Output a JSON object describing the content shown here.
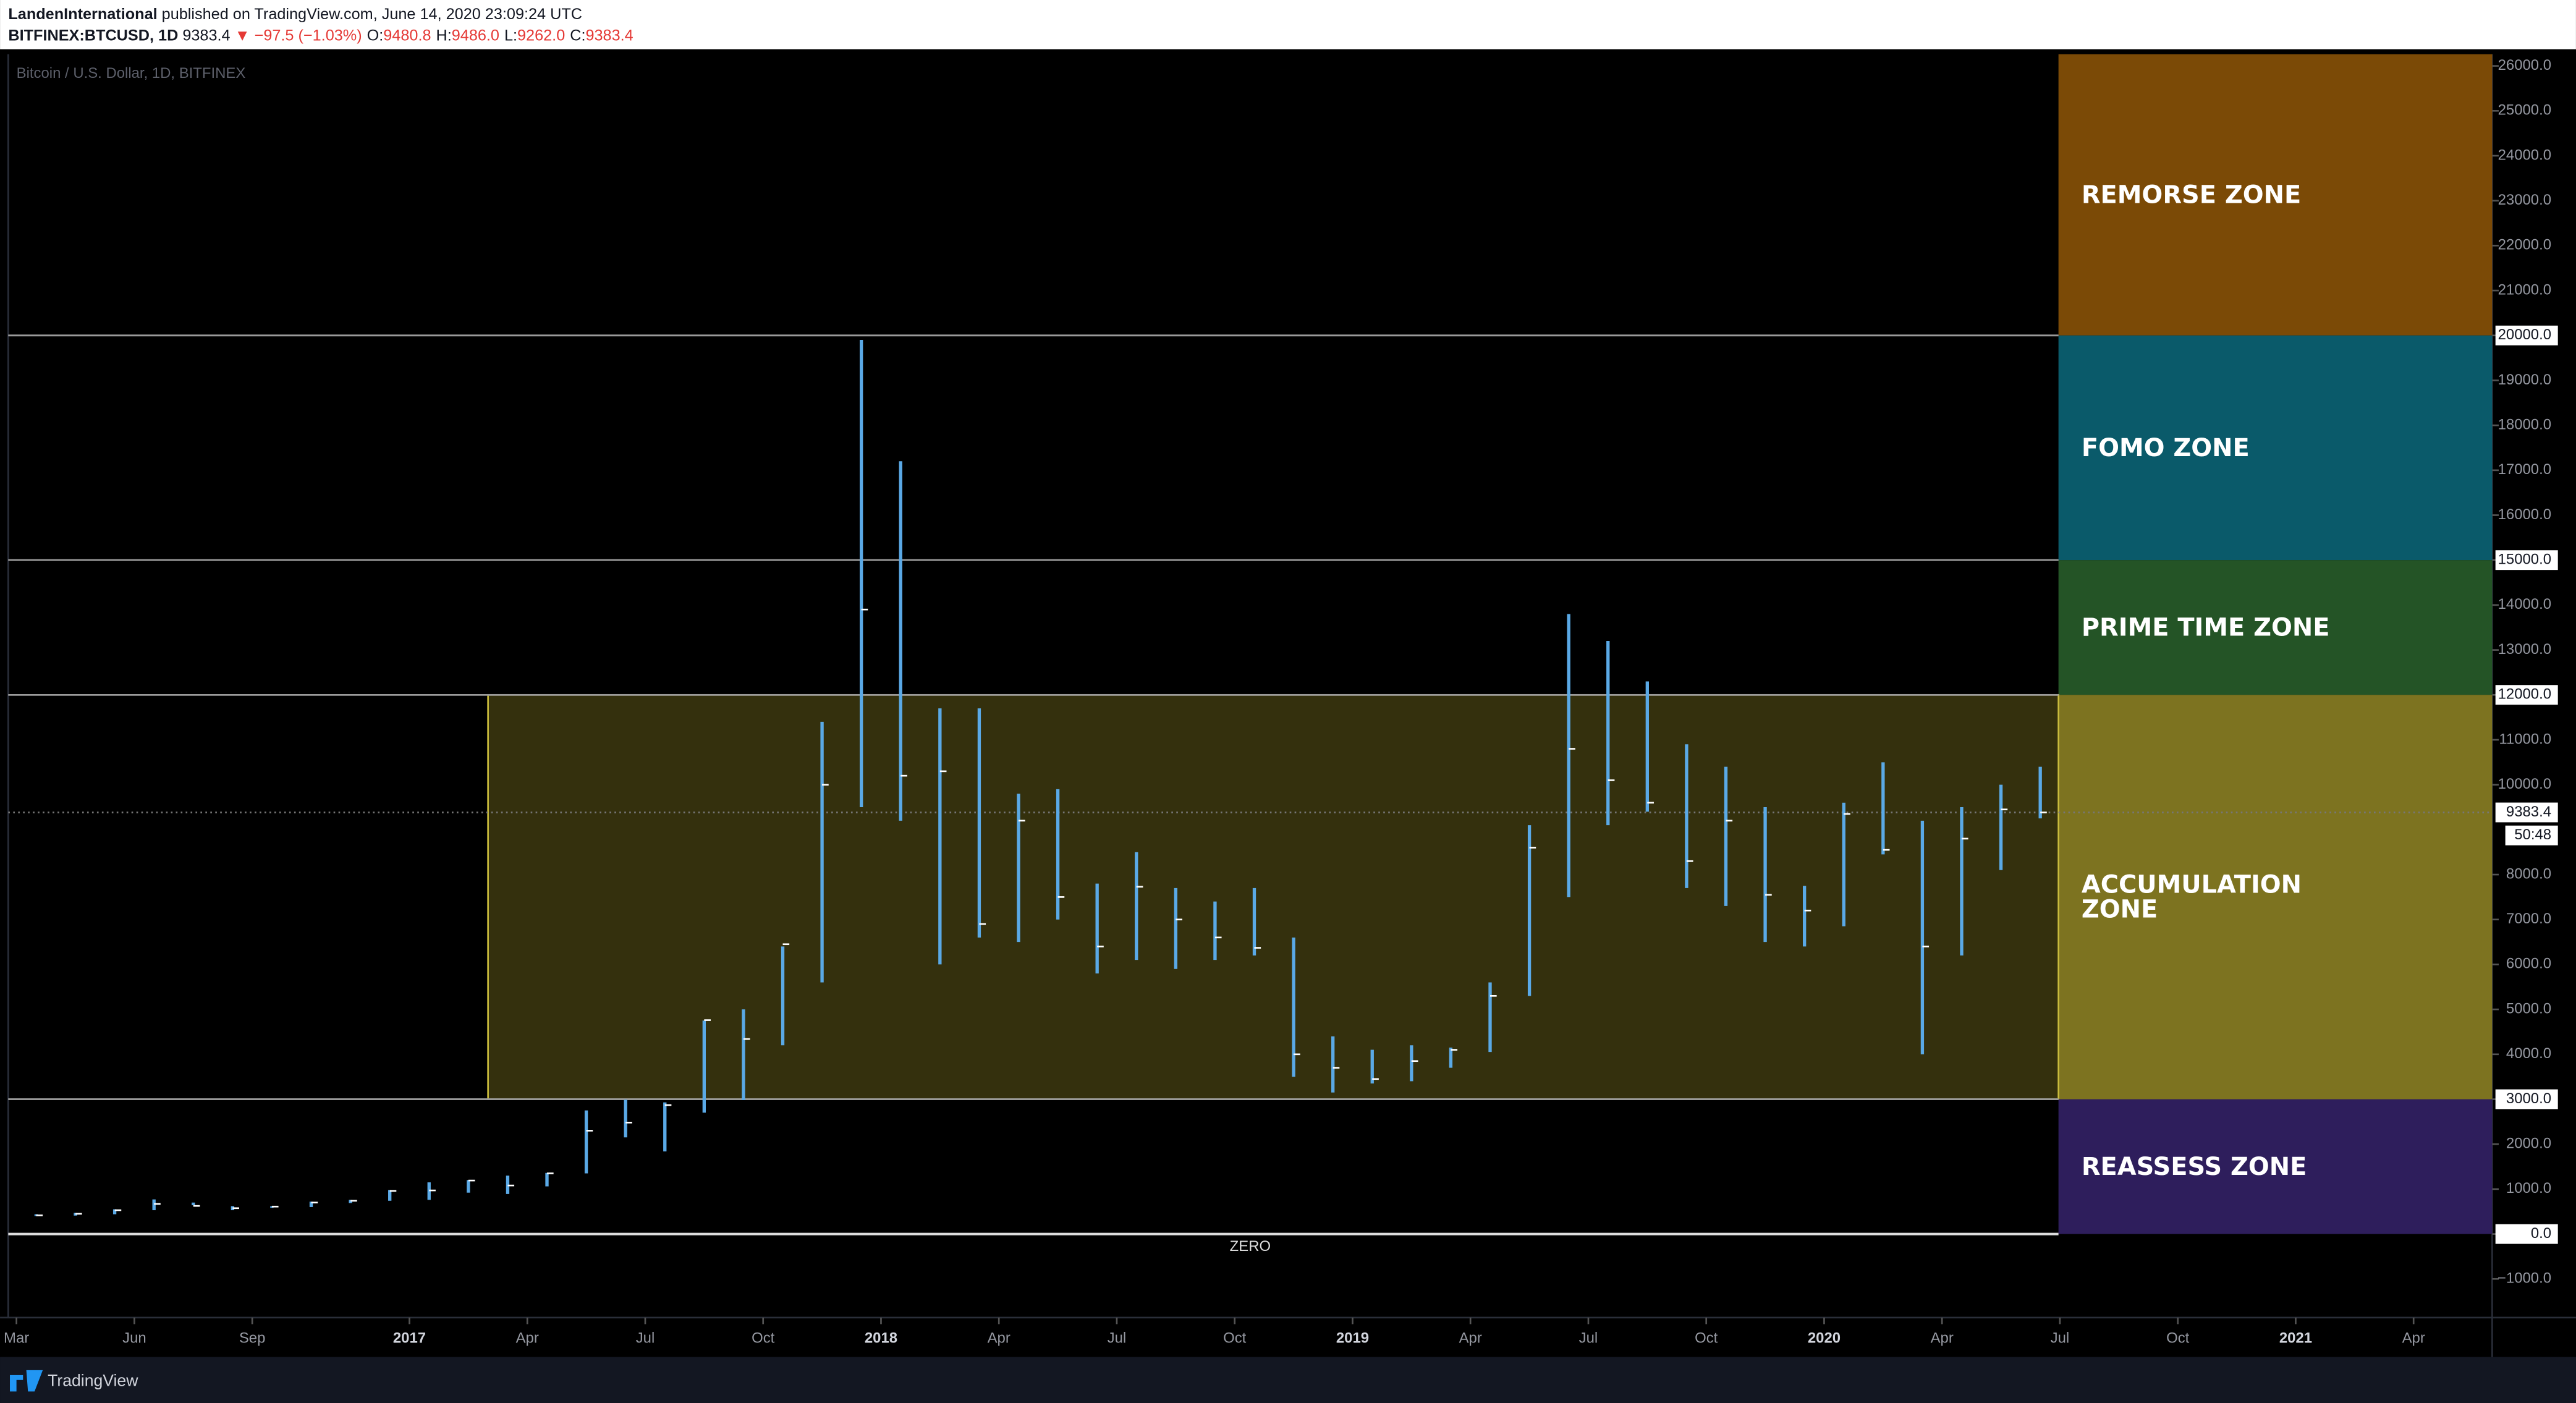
{
  "header": {
    "publisher": "LandenInternational",
    "published": "published on TradingView.com, June 14, 2020 23:09:24 UTC",
    "symbol": "BITFINEX:BTCUSD, 1D",
    "change": "▼ −97.5 (−1.03%)",
    "ohlc": [
      {
        "key": "O:",
        "value": "9480.8"
      },
      {
        "key": "H:",
        "value": "9486.0"
      },
      {
        "key": "L:",
        "value": "9262.0"
      },
      {
        "key": "C:",
        "value": "9383.4"
      }
    ]
  },
  "footer": {
    "brand": "TradingView"
  },
  "chart_data": {
    "type": "candlestick",
    "title": "Bitcoin / U.S. Dollar, 1D, BITFINEX",
    "color": "#5aa9e6",
    "last_price": 9383.4,
    "countdown": "50:48",
    "x": [
      "2016-03",
      "2016-04",
      "2016-05",
      "2016-06",
      "2016-07",
      "2016-08",
      "2016-09",
      "2016-10",
      "2016-11",
      "2016-12",
      "2017-01",
      "2017-02",
      "2017-03",
      "2017-04",
      "2017-05",
      "2017-06",
      "2017-07",
      "2017-08",
      "2017-09",
      "2017-10",
      "2017-11",
      "2017-12",
      "2018-01",
      "2018-02",
      "2018-03",
      "2018-04",
      "2018-05",
      "2018-06",
      "2018-07",
      "2018-08",
      "2018-09",
      "2018-10",
      "2018-11",
      "2018-12",
      "2019-01",
      "2019-02",
      "2019-03",
      "2019-04",
      "2019-05",
      "2019-06",
      "2019-07",
      "2019-08",
      "2019-09",
      "2019-10",
      "2019-11",
      "2019-12",
      "2020-01",
      "2020-02",
      "2020-03",
      "2020-04",
      "2020-05",
      "2020-06"
    ],
    "high": [
      440,
      470,
      550,
      770,
      700,
      620,
      620,
      720,
      760,
      980,
      1150,
      1200,
      1300,
      1360,
      2750,
      2990,
      2930,
      4750,
      5000,
      6400,
      11400,
      19900,
      17200,
      11700,
      11700,
      9800,
      9900,
      7800,
      8500,
      7700,
      7400,
      7700,
      6600,
      4400,
      4100,
      4200,
      4150,
      5600,
      9100,
      13800,
      13200,
      12300,
      10900,
      10400,
      9500,
      7750,
      9600,
      10500,
      9200,
      9500,
      10000,
      10400
    ],
    "low": [
      400,
      410,
      440,
      530,
      640,
      530,
      590,
      600,
      690,
      740,
      760,
      920,
      890,
      1060,
      1350,
      2150,
      1840,
      2700,
      2980,
      4200,
      5600,
      9500,
      9200,
      6000,
      6600,
      6500,
      7000,
      5800,
      6100,
      5900,
      6100,
      6200,
      3500,
      3150,
      3350,
      3400,
      3700,
      4050,
      5300,
      7500,
      9100,
      9400,
      7700,
      7300,
      6500,
      6400,
      6850,
      8450,
      4000,
      6200,
      8100,
      9250
    ],
    "close": [
      415,
      450,
      530,
      670,
      625,
      575,
      610,
      700,
      740,
      960,
      970,
      1190,
      1080,
      1350,
      2300,
      2480,
      2870,
      4760,
      4340,
      6450,
      10000,
      13900,
      10200,
      10300,
      6900,
      9200,
      7500,
      6400,
      7730,
      7000,
      6600,
      6370,
      4000,
      3700,
      3450,
      3850,
      4100,
      5300,
      8600,
      10800,
      10100,
      9600,
      8300,
      9200,
      7550,
      7200,
      9350,
      8550,
      6400,
      8800,
      9450,
      9383.4
    ],
    "xlim": [
      "2016-03",
      "2021-06"
    ],
    "xticks": [
      {
        "value": "2016-03",
        "label": "Mar"
      },
      {
        "value": "2016-06",
        "label": "Jun"
      },
      {
        "value": "2016-09",
        "label": "Sep"
      },
      {
        "value": "2017-01",
        "label": "2017"
      },
      {
        "value": "2017-04",
        "label": "Apr"
      },
      {
        "value": "2017-07",
        "label": "Jul"
      },
      {
        "value": "2017-10",
        "label": "Oct"
      },
      {
        "value": "2018-01",
        "label": "2018"
      },
      {
        "value": "2018-04",
        "label": "Apr"
      },
      {
        "value": "2018-07",
        "label": "Jul"
      },
      {
        "value": "2018-10",
        "label": "Oct"
      },
      {
        "value": "2019-01",
        "label": "2019"
      },
      {
        "value": "2019-04",
        "label": "Apr"
      },
      {
        "value": "2019-07",
        "label": "Jul"
      },
      {
        "value": "2019-10",
        "label": "Oct"
      },
      {
        "value": "2020-01",
        "label": "2020"
      },
      {
        "value": "2020-04",
        "label": "Apr"
      },
      {
        "value": "2020-07",
        "label": "Jul"
      },
      {
        "value": "2020-10",
        "label": "Oct"
      },
      {
        "value": "2021-01",
        "label": "2021"
      },
      {
        "value": "2021-04",
        "label": "Apr"
      }
    ],
    "ylim": [
      -1860,
      26260
    ],
    "yticks": [
      {
        "value": -1000,
        "label": "−1000.0"
      },
      {
        "value": 0,
        "label": "0.0"
      },
      {
        "value": 1000,
        "label": "1000.0"
      },
      {
        "value": 2000,
        "label": "2000.0"
      },
      {
        "value": 3000,
        "label": "3000.0"
      },
      {
        "value": 4000,
        "label": "4000.0"
      },
      {
        "value": 5000,
        "label": "5000.0"
      },
      {
        "value": 6000,
        "label": "6000.0"
      },
      {
        "value": 7000,
        "label": "7000.0"
      },
      {
        "value": 8000,
        "label": "8000.0"
      },
      {
        "value": 10000,
        "label": "10000.0"
      },
      {
        "value": 11000,
        "label": "11000.0"
      },
      {
        "value": 12000,
        "label": "12000.0"
      },
      {
        "value": 13000,
        "label": "13000.0"
      },
      {
        "value": 14000,
        "label": "14000.0"
      },
      {
        "value": 15000,
        "label": "15000.0"
      },
      {
        "value": 16000,
        "label": "16000.0"
      },
      {
        "value": 17000,
        "label": "17000.0"
      },
      {
        "value": 18000,
        "label": "18000.0"
      },
      {
        "value": 19000,
        "label": "19000.0"
      },
      {
        "value": 20000,
        "label": "20000.0"
      },
      {
        "value": 21000,
        "label": "21000.0"
      },
      {
        "value": 22000,
        "label": "22000.0"
      },
      {
        "value": 23000,
        "label": "23000.0"
      },
      {
        "value": 24000,
        "label": "24000.0"
      },
      {
        "value": 25000,
        "label": "25000.0"
      },
      {
        "value": 26000,
        "label": "26000.0"
      }
    ],
    "zones": [
      {
        "label": [
          "REMORSE ZONE"
        ],
        "from": 20000,
        "color": "#7b4a06"
      },
      {
        "label": [
          "FOMO ZONE"
        ],
        "from": 15000,
        "to": 20000,
        "color": "#0a5a6a"
      },
      {
        "label": [
          "PRIME TIME ZONE"
        ],
        "from": 12000,
        "to": 15000,
        "color": "#245426"
      },
      {
        "label": [
          "ACCUMULATION",
          "ZONE"
        ],
        "from": 3000,
        "to": 12000,
        "color": "#7d7320",
        "chart_start": "2017-03"
      },
      {
        "label": [
          "REASSESS ZONE"
        ],
        "from": 0,
        "to": 3000,
        "color": "#2e1e5c"
      }
    ],
    "annotations": [
      {
        "text": "ZERO",
        "y": 0
      }
    ]
  }
}
